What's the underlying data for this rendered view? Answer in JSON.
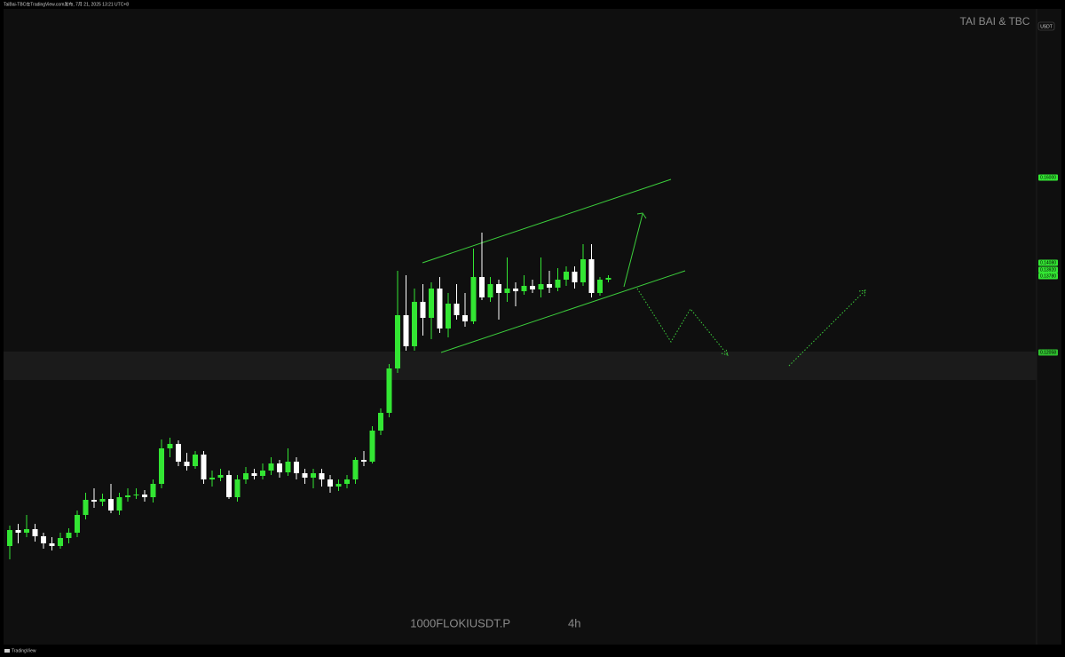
{
  "chart_data": {
    "type": "candlestick",
    "title": "1000FLOKIUSDT.P",
    "interval": "4h",
    "watermark": "TAI BAI & TBC",
    "currency": "USDT",
    "attribution": "TaiBai-TBC在TradingView.com发布, 7月 21, 2025 13:21 UTC+8",
    "brand": "TradingView",
    "up_color": "#33e633",
    "down_color": "#ffffff",
    "ylim": [
      0.0548,
      0.198
    ],
    "yticks": [
      {
        "value": 0.16,
        "label": "0.16000"
      },
      {
        "value": 0.1408,
        "label": "0.14080"
      },
      {
        "value": 0.1392,
        "label": "0.13920"
      },
      {
        "value": 0.1378,
        "label": "0.13780"
      },
      {
        "value": 0.1206,
        "label": "0.12058"
      }
    ],
    "open": [
      0.077,
      0.0806,
      0.08,
      0.0808,
      0.0792,
      0.0776,
      0.077,
      0.0788,
      0.08,
      0.084,
      0.0874,
      0.087,
      0.0876,
      0.085,
      0.088,
      0.0884,
      0.0886,
      0.088,
      0.091,
      0.099,
      0.1,
      0.096,
      0.095,
      0.0976,
      0.092,
      0.0924,
      0.093,
      0.088,
      0.092,
      0.0934,
      0.0928,
      0.094,
      0.0956,
      0.0936,
      0.096,
      0.0934,
      0.0924,
      0.0934,
      0.092,
      0.0904,
      0.091,
      0.092,
      0.0964,
      0.096,
      0.103,
      0.107,
      0.117,
      0.129,
      0.122,
      0.132,
      0.1284,
      0.135,
      0.126,
      0.1316,
      0.129,
      0.1276,
      0.1376,
      0.133,
      0.136,
      0.134,
      0.135,
      0.1344,
      0.1356,
      0.1348,
      0.136,
      0.1352,
      0.137,
      0.1388,
      0.1364,
      0.1416,
      0.134,
      0.137
    ],
    "high": [
      0.0816,
      0.082,
      0.084,
      0.082,
      0.08,
      0.079,
      0.08,
      0.081,
      0.085,
      0.089,
      0.09,
      0.0888,
      0.091,
      0.089,
      0.09,
      0.09,
      0.0896,
      0.092,
      0.101,
      0.1014,
      0.1008,
      0.098,
      0.0984,
      0.0984,
      0.094,
      0.0944,
      0.094,
      0.093,
      0.0948,
      0.0944,
      0.0956,
      0.097,
      0.0964,
      0.099,
      0.097,
      0.0944,
      0.0944,
      0.0944,
      0.093,
      0.092,
      0.093,
      0.097,
      0.0984,
      0.104,
      0.108,
      0.118,
      0.139,
      0.138,
      0.135,
      0.136,
      0.1364,
      0.1376,
      0.134,
      0.136,
      0.134,
      0.144,
      0.1476,
      0.1376,
      0.137,
      0.142,
      0.1364,
      0.138,
      0.137,
      0.142,
      0.139,
      0.1396,
      0.14,
      0.14,
      0.145,
      0.145,
      0.1376,
      0.138
    ],
    "low": [
      0.074,
      0.0776,
      0.079,
      0.078,
      0.0764,
      0.076,
      0.0764,
      0.0776,
      0.079,
      0.083,
      0.0856,
      0.086,
      0.0844,
      0.084,
      0.087,
      0.0876,
      0.087,
      0.0868,
      0.09,
      0.097,
      0.095,
      0.094,
      0.0944,
      0.091,
      0.0904,
      0.0916,
      0.0876,
      0.087,
      0.091,
      0.092,
      0.092,
      0.093,
      0.0924,
      0.0928,
      0.092,
      0.091,
      0.09,
      0.0904,
      0.089,
      0.0894,
      0.09,
      0.091,
      0.095,
      0.0956,
      0.102,
      0.106,
      0.116,
      0.121,
      0.121,
      0.1244,
      0.1236,
      0.125,
      0.124,
      0.128,
      0.1264,
      0.127,
      0.1324,
      0.132,
      0.128,
      0.132,
      0.131,
      0.1336,
      0.134,
      0.133,
      0.134,
      0.1344,
      0.1356,
      0.135,
      0.1356,
      0.133,
      0.1334,
      0.1364
    ],
    "close": [
      0.0806,
      0.08,
      0.0808,
      0.0792,
      0.0776,
      0.077,
      0.0788,
      0.08,
      0.084,
      0.0874,
      0.087,
      0.0876,
      0.085,
      0.088,
      0.0884,
      0.0886,
      0.088,
      0.091,
      0.099,
      0.1,
      0.096,
      0.095,
      0.0976,
      0.092,
      0.0924,
      0.093,
      0.088,
      0.092,
      0.0934,
      0.0928,
      0.094,
      0.0956,
      0.0936,
      0.096,
      0.0934,
      0.0924,
      0.0934,
      0.092,
      0.0904,
      0.091,
      0.092,
      0.0964,
      0.096,
      0.103,
      0.107,
      0.117,
      0.129,
      0.122,
      0.132,
      0.1284,
      0.135,
      0.126,
      0.1316,
      0.129,
      0.1276,
      0.1376,
      0.133,
      0.136,
      0.134,
      0.135,
      0.1344,
      0.1356,
      0.1348,
      0.136,
      0.1352,
      0.137,
      0.1388,
      0.1364,
      0.1416,
      0.134,
      0.137,
      0.1374
    ]
  }
}
